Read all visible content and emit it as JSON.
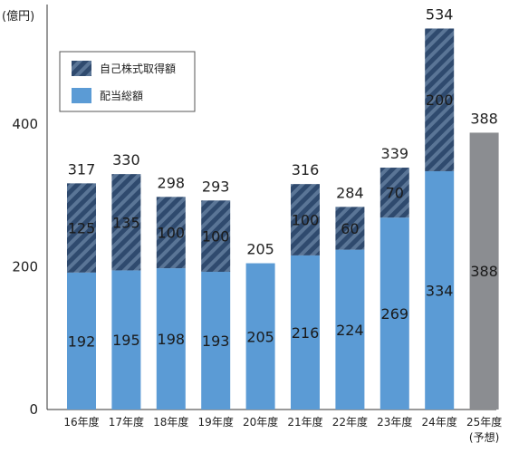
{
  "chart_data": {
    "type": "bar",
    "stacked": true,
    "unit_label": "(億円)",
    "categories": [
      "16年度",
      "17年度",
      "18年度",
      "19年度",
      "20年度",
      "21年度",
      "22年度",
      "23年度",
      "24年度",
      "25年度"
    ],
    "category_notes": [
      "",
      "",
      "",
      "",
      "",
      "",
      "",
      "",
      "",
      "(予想)"
    ],
    "yticks": [
      0,
      200,
      400
    ],
    "ylim": [
      0,
      560
    ],
    "series": [
      {
        "name": "配当総額",
        "values": [
          192,
          195,
          198,
          193,
          205,
          216,
          224,
          269,
          334,
          null
        ],
        "color": "#5b9bd5"
      },
      {
        "name": "自己株式取得額",
        "values": [
          125,
          135,
          100,
          100,
          null,
          100,
          60,
          70,
          200,
          null
        ],
        "color": "#2e4a70"
      },
      {
        "name": "",
        "values": [
          null,
          null,
          null,
          null,
          null,
          null,
          null,
          null,
          null,
          388
        ],
        "color": "#8b8d91"
      }
    ],
    "inner_labels": [
      [
        "192",
        "125"
      ],
      [
        "195",
        "135"
      ],
      [
        "198",
        "100"
      ],
      [
        "193",
        "100"
      ],
      [
        "205",
        ""
      ],
      [
        "216",
        "100"
      ],
      [
        "224",
        "60"
      ],
      [
        "269",
        "70"
      ],
      [
        "334",
        "200"
      ],
      [
        "388",
        ""
      ]
    ],
    "totals": [
      "317",
      "330",
      "298",
      "293",
      "205",
      "316",
      "284",
      "339",
      "534",
      "388"
    ],
    "legend": {
      "position": "top-left",
      "items": [
        "自己株式取得額",
        "配当総額"
      ]
    }
  }
}
